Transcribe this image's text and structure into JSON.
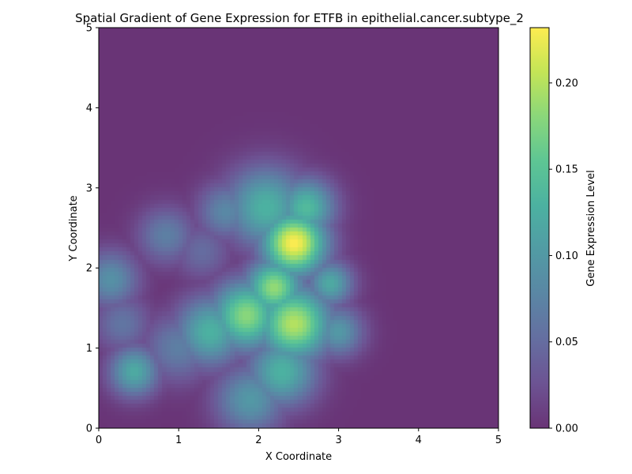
{
  "chart_data": {
    "type": "heatmap",
    "title": "Spatial Gradient of Gene Expression for ETFB in epithelial.cancer.subtype_2",
    "xlabel": "X Coordinate",
    "ylabel": "Y Coordinate",
    "xlim": [
      0,
      5
    ],
    "ylim": [
      0,
      5
    ],
    "xticks": [
      "0",
      "1",
      "2",
      "3",
      "4",
      "5"
    ],
    "yticks": [
      "0",
      "1",
      "2",
      "3",
      "4",
      "5"
    ],
    "grid": false,
    "colormap": "viridis",
    "alpha": 0.8,
    "colorbar": {
      "label": "Gene Expression Level",
      "min": 0.0,
      "max": 0.232,
      "ticks": [
        "0.00",
        "0.05",
        "0.10",
        "0.15",
        "0.20"
      ]
    },
    "hotspots": [
      {
        "x": 2.45,
        "y": 2.3,
        "sigma": 0.28,
        "value": 0.232
      },
      {
        "x": 2.45,
        "y": 1.3,
        "sigma": 0.32,
        "value": 0.2
      },
      {
        "x": 2.2,
        "y": 1.75,
        "sigma": 0.25,
        "value": 0.185
      },
      {
        "x": 1.85,
        "y": 1.4,
        "sigma": 0.3,
        "value": 0.18
      },
      {
        "x": 2.1,
        "y": 2.75,
        "sigma": 0.35,
        "value": 0.13
      },
      {
        "x": 2.6,
        "y": 2.75,
        "sigma": 0.25,
        "value": 0.14
      },
      {
        "x": 2.3,
        "y": 0.7,
        "sigma": 0.3,
        "value": 0.13
      },
      {
        "x": 1.4,
        "y": 1.2,
        "sigma": 0.3,
        "value": 0.13
      },
      {
        "x": 2.9,
        "y": 1.8,
        "sigma": 0.2,
        "value": 0.12
      },
      {
        "x": 3.0,
        "y": 1.2,
        "sigma": 0.22,
        "value": 0.1
      },
      {
        "x": 1.9,
        "y": 0.35,
        "sigma": 0.3,
        "value": 0.1
      },
      {
        "x": 0.45,
        "y": 0.7,
        "sigma": 0.22,
        "value": 0.12
      },
      {
        "x": 0.15,
        "y": 1.85,
        "sigma": 0.25,
        "value": 0.09
      },
      {
        "x": 0.3,
        "y": 1.3,
        "sigma": 0.25,
        "value": 0.06
      },
      {
        "x": 0.85,
        "y": 2.4,
        "sigma": 0.25,
        "value": 0.07
      },
      {
        "x": 1.0,
        "y": 1.0,
        "sigma": 0.3,
        "value": 0.07
      },
      {
        "x": 1.3,
        "y": 2.2,
        "sigma": 0.25,
        "value": 0.05
      },
      {
        "x": 1.6,
        "y": 2.7,
        "sigma": 0.25,
        "value": 0.08
      }
    ]
  }
}
